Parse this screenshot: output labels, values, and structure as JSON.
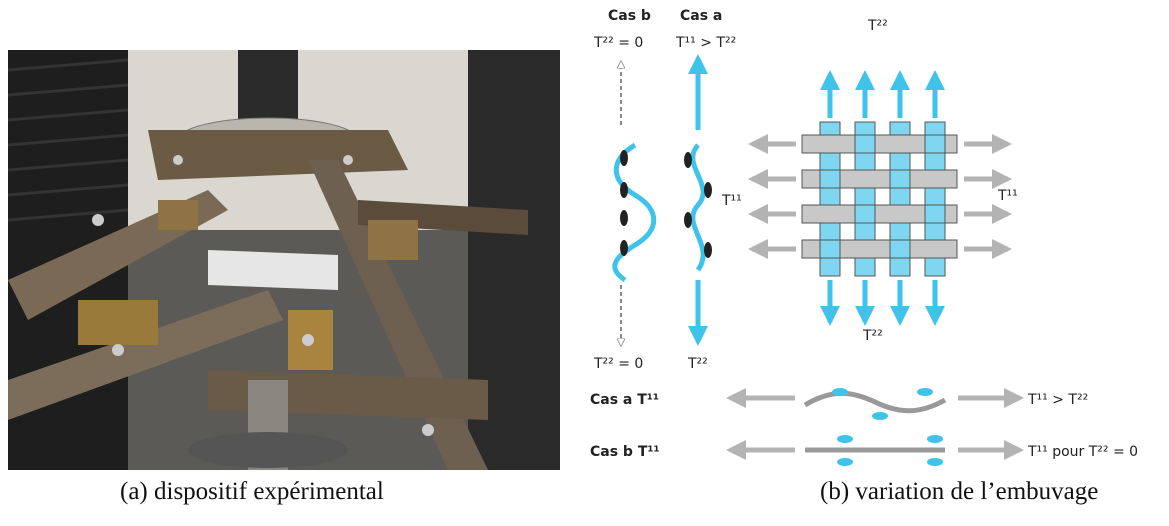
{
  "captions": {
    "a": "(a) dispositif expérimental",
    "b": "(b) variation de l’embuvage"
  },
  "diagram": {
    "col_b_title": "Cas b",
    "col_a_title": "Cas a",
    "col_b_top": "T²² = 0",
    "col_a_top": "T¹¹ > T²²",
    "col_b_bottom": "T²² = 0",
    "col_a_bottom": "T²²",
    "left_T11": "T¹¹",
    "right_T11": "T¹¹",
    "top_T22": "T²²",
    "bottom_T22": "T²²",
    "row_a_label": "Cas a T¹¹",
    "row_a_result": "T¹¹ > T²²",
    "row_b_label": "Cas b T¹¹",
    "row_b_result": "T¹¹ pour T²² = 0"
  },
  "colors": {
    "fiber_blue": "#3fc3ea",
    "arrow_grey": "#b3b3b3",
    "yarn_grey": "#bdbdbd"
  }
}
